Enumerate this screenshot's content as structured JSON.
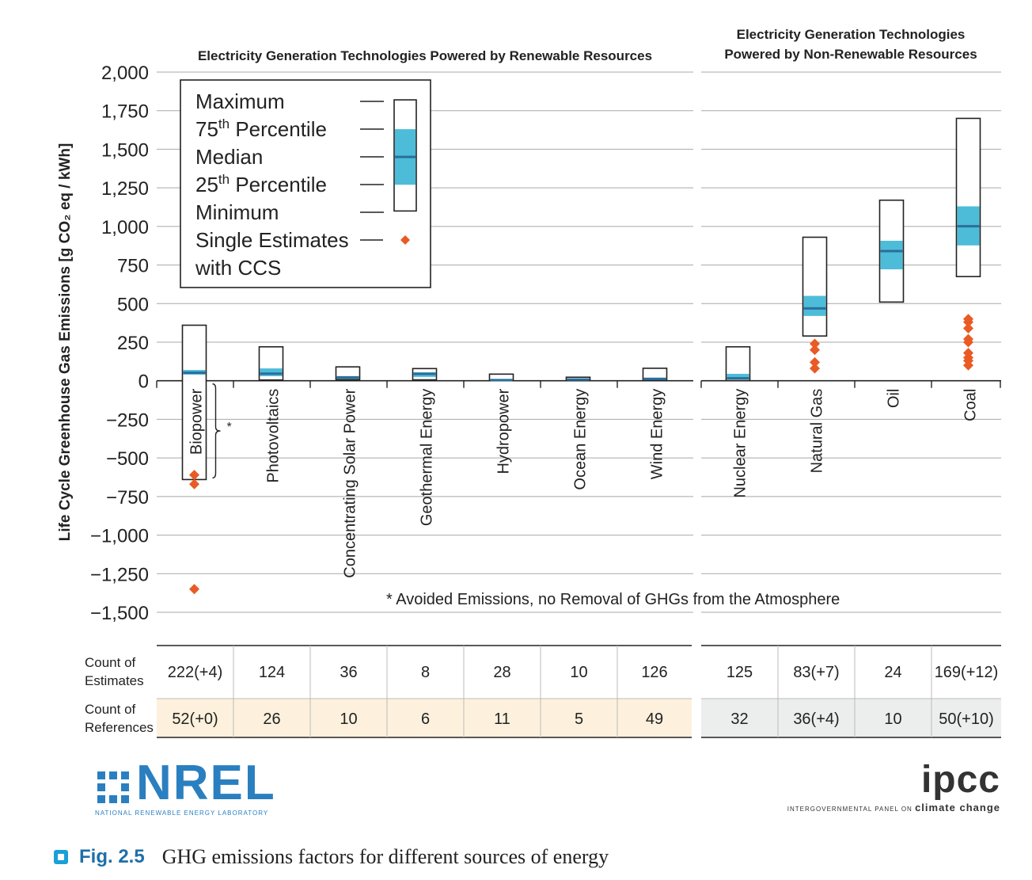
{
  "figure": {
    "caption_label": "Fig. 2.5",
    "caption_text": "GHG emissions factors for different sources of energy"
  },
  "logos": {
    "nrel_text": "NREL",
    "nrel_subtitle": "NATIONAL RENEWABLE ENERGY LABORATORY",
    "ipcc_text": "ipcc",
    "ipcc_subtitle_left": "INTERGOVERNMENTAL PANEL ON",
    "ipcc_subtitle_right": "climate change"
  },
  "colors": {
    "iqr_fill": "#4dbcd9",
    "median_line": "#2a6e9c",
    "ccs_marker": "#ea5a24",
    "renewable_ref_bg": "#fdf1dd",
    "nonrenewable_ref_bg": "#eceeee",
    "gridline": "#a8a8a8"
  },
  "chart_data": {
    "type": "box",
    "ylabel": "Life Cycle Greenhouse Gas Emissions [g CO₂ eq / kWh]",
    "ylim": [
      -1500,
      2000
    ],
    "yticks": [
      2000,
      1750,
      1500,
      1250,
      1000,
      750,
      500,
      250,
      0,
      -250,
      -500,
      -750,
      -1000,
      -1250,
      -1500
    ],
    "ytick_labels": [
      "2,000",
      "1,750",
      "1,500",
      "1,250",
      "1,000",
      "750",
      "500",
      "250",
      "0",
      "−250",
      "−500",
      "−750",
      "−1,000",
      "−1,250",
      "−1,500"
    ],
    "grid": true,
    "group_titles": {
      "renewable": "Electricity Generation Technologies Powered by Renewable Resources",
      "nonrenewable_line1": "Electricity Generation Technologies",
      "nonrenewable_line2": "Powered by Non-Renewable Resources"
    },
    "legend": {
      "position": "top-left",
      "items": [
        {
          "label": "Maximum"
        },
        {
          "label": "75",
          "sup": "th",
          "rest": " Percentile"
        },
        {
          "label": "Median"
        },
        {
          "label": "25",
          "sup": "th",
          "rest": " Percentile"
        },
        {
          "label": "Minimum"
        },
        {
          "label": "Single Estimates"
        },
        {
          "label": "with CCS"
        }
      ],
      "sample": {
        "max": 1820,
        "q3": 1630,
        "median": 1450,
        "q1": 1270,
        "min": 1100,
        "ccs": 1000
      }
    },
    "annotation": "* Avoided Emissions, no Removal of GHGs from the Atmosphere",
    "bracket_marker": "*",
    "bracket_range": [
      0,
      -640
    ],
    "table_row_labels": {
      "estimates_line1": "Count of",
      "estimates_line2": "Estimates",
      "references_line1": "Count of",
      "references_line2": "References"
    },
    "categories": [
      {
        "name": "Biopower",
        "group": "renewable",
        "min": -640,
        "q1": 40,
        "median": 52,
        "q3": 70,
        "max": 360,
        "ccs": [
          -610,
          -670,
          -1350
        ],
        "estimates": "222(+4)",
        "references": "52(+0)"
      },
      {
        "name": "Photovoltaics",
        "group": "renewable",
        "min": 5,
        "q1": 30,
        "median": 46,
        "q3": 80,
        "max": 220,
        "ccs": [],
        "estimates": "124",
        "references": "26"
      },
      {
        "name": "Concentrating Solar Power",
        "group": "renewable",
        "min": 8,
        "q1": 12,
        "median": 22,
        "q3": 28,
        "max": 90,
        "ccs": [],
        "estimates": "36",
        "references": "10"
      },
      {
        "name": "Geothermal Energy",
        "group": "renewable",
        "min": 6,
        "q1": 25,
        "median": 45,
        "q3": 55,
        "max": 79,
        "ccs": [],
        "estimates": "8",
        "references": "6"
      },
      {
        "name": "Hydropower",
        "group": "renewable",
        "min": 0,
        "q1": 3,
        "median": 4,
        "q3": 7,
        "max": 43,
        "ccs": [],
        "estimates": "28",
        "references": "11"
      },
      {
        "name": "Ocean Energy",
        "group": "renewable",
        "min": 2,
        "q1": 6,
        "median": 8,
        "q3": 9,
        "max": 23,
        "ccs": [],
        "estimates": "10",
        "references": "5"
      },
      {
        "name": "Wind Energy",
        "group": "renewable",
        "min": 2,
        "q1": 8,
        "median": 12,
        "q3": 20,
        "max": 81,
        "ccs": [],
        "estimates": "126",
        "references": "49"
      },
      {
        "name": "Nuclear Energy",
        "group": "nonrenewable",
        "min": 1,
        "q1": 8,
        "median": 16,
        "q3": 45,
        "max": 220,
        "ccs": [],
        "estimates": "125",
        "references": "32"
      },
      {
        "name": "Natural Gas",
        "group": "nonrenewable",
        "min": 290,
        "q1": 420,
        "median": 469,
        "q3": 550,
        "max": 930,
        "ccs": [
          240,
          200,
          120,
          80
        ],
        "estimates": "83(+7)",
        "references": "36(+4)"
      },
      {
        "name": "Oil",
        "group": "nonrenewable",
        "min": 510,
        "q1": 722,
        "median": 840,
        "q3": 907,
        "max": 1170,
        "ccs": [],
        "estimates": "24",
        "references": "10"
      },
      {
        "name": "Coal",
        "group": "nonrenewable",
        "min": 675,
        "q1": 877,
        "median": 1001,
        "q3": 1130,
        "max": 1700,
        "ccs": [
          400,
          380,
          340,
          270,
          250,
          180,
          150,
          130,
          100
        ],
        "estimates": "169(+12)",
        "references": "50(+10)"
      }
    ]
  }
}
